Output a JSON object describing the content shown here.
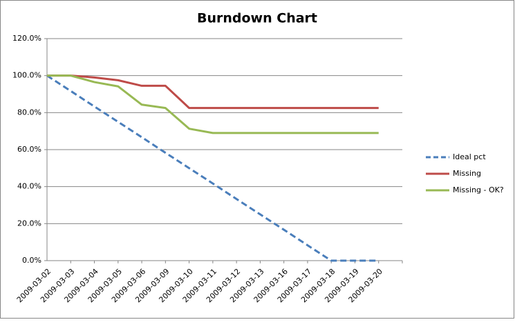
{
  "chart_data": {
    "type": "line",
    "title": "Burndown Chart",
    "categories": [
      "2009-03-02",
      "2009-03-03",
      "2009-03-04",
      "2009-03-05",
      "2009-03-06",
      "2009-03-09",
      "2009-03-10",
      "2009-03-11",
      "2009-03-12",
      "2009-03-13",
      "2009-03-16",
      "2009-03-17",
      "2009-03-18",
      "2009-03-19",
      "2009-03-20"
    ],
    "series": [
      {
        "name": "Ideal pct",
        "color": "#4a7ebb",
        "dashed": true,
        "values": [
          100,
          91.7,
          83.3,
          75,
          66.7,
          58.3,
          50,
          41.7,
          33.3,
          25,
          16.7,
          8.3,
          0,
          0,
          0
        ]
      },
      {
        "name": "Missing",
        "color": "#be4b48",
        "dashed": false,
        "values": [
          100,
          100,
          99,
          97.5,
          94.5,
          94.5,
          82.5,
          82.5,
          82.5,
          82.5,
          82.5,
          82.5,
          82.5,
          82.5,
          82.5
        ]
      },
      {
        "name": "Missing - OK?",
        "color": "#98b954",
        "dashed": false,
        "values": [
          100,
          100,
          96.5,
          94.2,
          84.3,
          82.5,
          71.3,
          69,
          69,
          69,
          69,
          69,
          69,
          69,
          69
        ]
      }
    ],
    "ylim": [
      0,
      120
    ],
    "yticks": [
      {
        "value": 0,
        "label": "0.0%"
      },
      {
        "value": 20,
        "label": "20.0%"
      },
      {
        "value": 40,
        "label": "40.0%"
      },
      {
        "value": 60,
        "label": "60.0%"
      },
      {
        "value": 80,
        "label": "80.0%"
      },
      {
        "value": 100,
        "label": "100.0%"
      },
      {
        "value": 120,
        "label": "120.0%"
      }
    ],
    "grid": true,
    "legend": "right"
  }
}
